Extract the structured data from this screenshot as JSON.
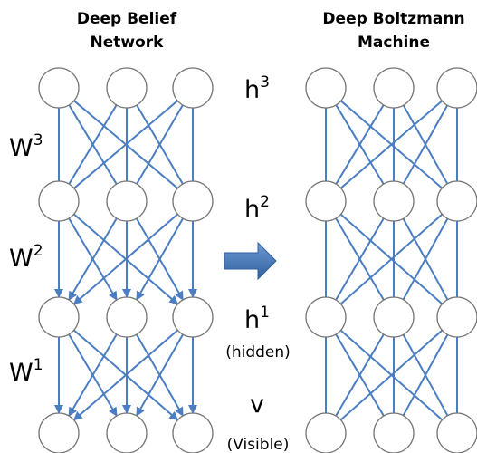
{
  "left": {
    "title": [
      "Deep Belief",
      "Network"
    ],
    "weights": [
      {
        "base": "W",
        "sup": "3"
      },
      {
        "base": "W",
        "sup": "2"
      },
      {
        "base": "W",
        "sup": "1"
      }
    ]
  },
  "right": {
    "title": [
      "Deep Boltzmann",
      "Machine"
    ]
  },
  "layers": [
    {
      "base": "h",
      "sup": "3"
    },
    {
      "base": "h",
      "sup": "2"
    },
    {
      "base": "h",
      "sup": "1",
      "note": "(hidden)"
    },
    {
      "base": "v",
      "note": "(Visible)"
    }
  ]
}
